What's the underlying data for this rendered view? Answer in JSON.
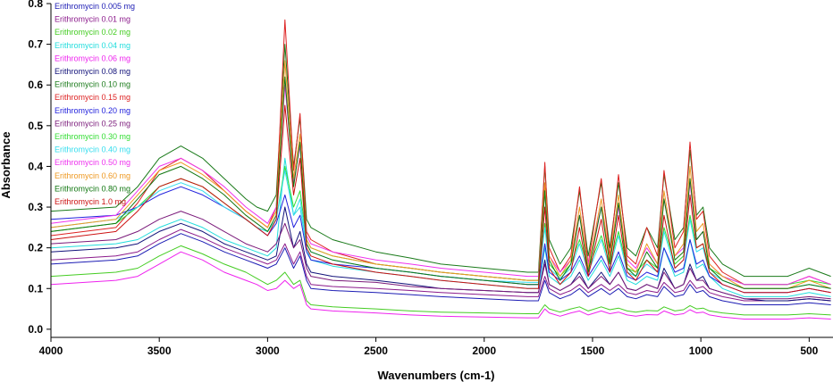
{
  "chart_data": {
    "type": "line",
    "title": "",
    "xlabel": "Wavenumbers (cm-1)",
    "ylabel": "Absorbance",
    "xlim": [
      4000,
      390
    ],
    "ylim": [
      -0.02,
      0.8
    ],
    "x_reversed": true,
    "grid": false,
    "legend_position": "top-left",
    "x_ticks": [
      4000,
      3500,
      3000,
      2500,
      2000,
      1500,
      1000,
      500
    ],
    "x_tick_labels": [
      "4000",
      "3500",
      "3000",
      "2500",
      "2000",
      "1500",
      "1000",
      "500"
    ],
    "y_ticks": [
      0.0,
      0.1,
      0.2,
      0.3,
      0.4,
      0.5,
      0.6,
      0.7,
      0.8
    ],
    "y_tick_labels": [
      "0.0",
      "0.1",
      "0.2",
      "0.3",
      "0.4",
      "0.5",
      "0.6",
      "0.7",
      "0.8"
    ],
    "x": [
      4000,
      3700,
      3600,
      3500,
      3400,
      3300,
      3200,
      3100,
      3050,
      3000,
      2960,
      2920,
      2880,
      2850,
      2820,
      2800,
      2700,
      2500,
      2340,
      2200,
      2000,
      1800,
      1750,
      1720,
      1700,
      1650,
      1600,
      1560,
      1520,
      1460,
      1420,
      1380,
      1340,
      1300,
      1250,
      1200,
      1170,
      1120,
      1080,
      1050,
      1020,
      990,
      960,
      900,
      800,
      700,
      600,
      500,
      400
    ],
    "series": [
      {
        "name": "Erithromycin 0.005 mg",
        "color": "#1c1cb4",
        "values": [
          0.16,
          0.17,
          0.18,
          0.21,
          0.235,
          0.215,
          0.19,
          0.17,
          0.16,
          0.15,
          0.16,
          0.2,
          0.15,
          0.18,
          0.12,
          0.1,
          0.095,
          0.09,
          0.085,
          0.08,
          0.075,
          0.07,
          0.07,
          0.12,
          0.09,
          0.075,
          0.085,
          0.1,
          0.08,
          0.1,
          0.085,
          0.1,
          0.08,
          0.075,
          0.085,
          0.08,
          0.105,
          0.08,
          0.085,
          0.11,
          0.09,
          0.095,
          0.08,
          0.07,
          0.06,
          0.06,
          0.06,
          0.065,
          0.06
        ]
      },
      {
        "name": "Erithromycin 0.01 mg",
        "color": "#8b1a8b",
        "values": [
          0.17,
          0.18,
          0.19,
          0.22,
          0.245,
          0.225,
          0.2,
          0.18,
          0.17,
          0.16,
          0.17,
          0.21,
          0.16,
          0.19,
          0.13,
          0.11,
          0.105,
          0.1,
          0.095,
          0.09,
          0.085,
          0.08,
          0.08,
          0.13,
          0.1,
          0.085,
          0.095,
          0.11,
          0.09,
          0.11,
          0.095,
          0.11,
          0.09,
          0.085,
          0.095,
          0.09,
          0.115,
          0.09,
          0.095,
          0.12,
          0.1,
          0.105,
          0.09,
          0.08,
          0.07,
          0.07,
          0.07,
          0.075,
          0.07
        ]
      },
      {
        "name": "Erithromycin 0.02 mg",
        "color": "#44cc22",
        "values": [
          0.13,
          0.14,
          0.15,
          0.18,
          0.205,
          0.185,
          0.16,
          0.14,
          0.125,
          0.11,
          0.12,
          0.14,
          0.11,
          0.12,
          0.07,
          0.06,
          0.055,
          0.05,
          0.045,
          0.042,
          0.04,
          0.038,
          0.038,
          0.06,
          0.05,
          0.042,
          0.05,
          0.055,
          0.045,
          0.055,
          0.048,
          0.052,
          0.045,
          0.042,
          0.046,
          0.045,
          0.055,
          0.045,
          0.048,
          0.058,
          0.05,
          0.052,
          0.045,
          0.04,
          0.035,
          0.035,
          0.035,
          0.038,
          0.035
        ]
      },
      {
        "name": "Erithromycin 0.04 mg",
        "color": "#22dddd",
        "values": [
          0.2,
          0.21,
          0.22,
          0.25,
          0.27,
          0.25,
          0.22,
          0.2,
          0.19,
          0.18,
          0.2,
          0.42,
          0.28,
          0.3,
          0.2,
          0.17,
          0.155,
          0.14,
          0.13,
          0.12,
          0.11,
          0.1,
          0.1,
          0.2,
          0.13,
          0.11,
          0.13,
          0.17,
          0.12,
          0.17,
          0.13,
          0.18,
          0.12,
          0.11,
          0.13,
          0.12,
          0.2,
          0.13,
          0.14,
          0.22,
          0.15,
          0.16,
          0.13,
          0.1,
          0.08,
          0.08,
          0.08,
          0.09,
          0.08
        ]
      },
      {
        "name": "Erithromycin 0.06 mg",
        "color": "#ee22ee",
        "values": [
          0.11,
          0.12,
          0.13,
          0.16,
          0.19,
          0.17,
          0.14,
          0.12,
          0.11,
          0.095,
          0.1,
          0.12,
          0.1,
          0.11,
          0.06,
          0.05,
          0.045,
          0.04,
          0.035,
          0.032,
          0.03,
          0.028,
          0.028,
          0.05,
          0.04,
          0.032,
          0.04,
          0.045,
          0.035,
          0.045,
          0.038,
          0.042,
          0.035,
          0.032,
          0.036,
          0.035,
          0.045,
          0.035,
          0.038,
          0.048,
          0.04,
          0.042,
          0.035,
          0.03,
          0.025,
          0.025,
          0.025,
          0.028,
          0.025
        ]
      },
      {
        "name": "Erithromycin 0.08 mg",
        "color": "#12127a",
        "values": [
          0.19,
          0.2,
          0.21,
          0.24,
          0.26,
          0.24,
          0.21,
          0.19,
          0.18,
          0.17,
          0.18,
          0.3,
          0.2,
          0.24,
          0.16,
          0.14,
          0.13,
          0.12,
          0.11,
          0.1,
          0.095,
          0.09,
          0.09,
          0.17,
          0.11,
          0.095,
          0.11,
          0.14,
          0.1,
          0.14,
          0.11,
          0.14,
          0.1,
          0.095,
          0.11,
          0.1,
          0.15,
          0.1,
          0.11,
          0.16,
          0.12,
          0.13,
          0.1,
          0.09,
          0.075,
          0.07,
          0.07,
          0.075,
          0.07
        ]
      },
      {
        "name": "Erithromycin 0.10 mg",
        "color": "#1a7a1a",
        "values": [
          0.29,
          0.3,
          0.35,
          0.42,
          0.45,
          0.42,
          0.37,
          0.32,
          0.3,
          0.29,
          0.33,
          0.7,
          0.4,
          0.52,
          0.27,
          0.25,
          0.22,
          0.19,
          0.175,
          0.16,
          0.15,
          0.14,
          0.14,
          0.4,
          0.22,
          0.16,
          0.2,
          0.34,
          0.18,
          0.36,
          0.2,
          0.36,
          0.2,
          0.18,
          0.25,
          0.2,
          0.38,
          0.22,
          0.25,
          0.44,
          0.28,
          0.3,
          0.2,
          0.16,
          0.13,
          0.13,
          0.13,
          0.15,
          0.13
        ]
      },
      {
        "name": "Erithromycin 0.15 mg",
        "color": "#dd2222",
        "values": [
          0.23,
          0.25,
          0.31,
          0.39,
          0.42,
          0.39,
          0.34,
          0.29,
          0.27,
          0.25,
          0.3,
          0.76,
          0.39,
          0.53,
          0.24,
          0.22,
          0.19,
          0.16,
          0.15,
          0.14,
          0.13,
          0.12,
          0.12,
          0.41,
          0.2,
          0.14,
          0.18,
          0.35,
          0.16,
          0.37,
          0.18,
          0.38,
          0.18,
          0.16,
          0.25,
          0.18,
          0.39,
          0.2,
          0.24,
          0.46,
          0.27,
          0.29,
          0.18,
          0.14,
          0.11,
          0.11,
          0.11,
          0.13,
          0.11
        ]
      },
      {
        "name": "Erithromycin 0.20 mg",
        "color": "#2222dd",
        "values": [
          0.27,
          0.28,
          0.3,
          0.33,
          0.35,
          0.33,
          0.3,
          0.27,
          0.25,
          0.23,
          0.26,
          0.33,
          0.25,
          0.28,
          0.19,
          0.17,
          0.16,
          0.15,
          0.14,
          0.13,
          0.12,
          0.11,
          0.11,
          0.21,
          0.14,
          0.12,
          0.14,
          0.18,
          0.13,
          0.18,
          0.14,
          0.19,
          0.13,
          0.12,
          0.14,
          0.13,
          0.2,
          0.14,
          0.15,
          0.22,
          0.16,
          0.17,
          0.13,
          0.11,
          0.09,
          0.09,
          0.09,
          0.1,
          0.09
        ]
      },
      {
        "name": "Erithromycin 0.25 mg",
        "color": "#7a1a7a",
        "values": [
          0.21,
          0.22,
          0.24,
          0.27,
          0.29,
          0.27,
          0.24,
          0.21,
          0.2,
          0.19,
          0.21,
          0.26,
          0.2,
          0.22,
          0.15,
          0.13,
          0.12,
          0.115,
          0.105,
          0.1,
          0.095,
          0.09,
          0.09,
          0.16,
          0.11,
          0.095,
          0.11,
          0.13,
          0.1,
          0.13,
          0.11,
          0.14,
          0.1,
          0.095,
          0.11,
          0.1,
          0.14,
          0.1,
          0.11,
          0.15,
          0.12,
          0.12,
          0.1,
          0.09,
          0.075,
          0.075,
          0.075,
          0.08,
          0.075
        ]
      },
      {
        "name": "Erithromycin 0.30 mg",
        "color": "#33dd33",
        "values": [
          0.24,
          0.26,
          0.3,
          0.35,
          0.37,
          0.35,
          0.31,
          0.27,
          0.25,
          0.24,
          0.27,
          0.4,
          0.3,
          0.34,
          0.22,
          0.2,
          0.18,
          0.16,
          0.15,
          0.14,
          0.13,
          0.12,
          0.12,
          0.26,
          0.16,
          0.13,
          0.16,
          0.22,
          0.15,
          0.23,
          0.16,
          0.24,
          0.15,
          0.14,
          0.17,
          0.15,
          0.25,
          0.16,
          0.18,
          0.28,
          0.2,
          0.21,
          0.15,
          0.13,
          0.11,
          0.11,
          0.11,
          0.12,
          0.11
        ]
      },
      {
        "name": "Erithromycin 0.40 mg",
        "color": "#33ddee",
        "values": [
          0.25,
          0.27,
          0.3,
          0.34,
          0.36,
          0.34,
          0.3,
          0.27,
          0.25,
          0.24,
          0.27,
          0.39,
          0.28,
          0.32,
          0.21,
          0.19,
          0.17,
          0.15,
          0.14,
          0.13,
          0.12,
          0.115,
          0.115,
          0.25,
          0.15,
          0.125,
          0.15,
          0.21,
          0.14,
          0.22,
          0.15,
          0.23,
          0.14,
          0.13,
          0.16,
          0.14,
          0.24,
          0.15,
          0.17,
          0.27,
          0.19,
          0.2,
          0.14,
          0.12,
          0.1,
          0.1,
          0.1,
          0.11,
          0.1
        ]
      },
      {
        "name": "Erithromycin 0.50 mg",
        "color": "#ee33ee",
        "values": [
          0.26,
          0.28,
          0.34,
          0.4,
          0.42,
          0.39,
          0.35,
          0.3,
          0.28,
          0.26,
          0.3,
          0.6,
          0.36,
          0.45,
          0.23,
          0.21,
          0.19,
          0.17,
          0.16,
          0.15,
          0.14,
          0.13,
          0.13,
          0.34,
          0.18,
          0.14,
          0.17,
          0.28,
          0.16,
          0.3,
          0.17,
          0.3,
          0.17,
          0.15,
          0.2,
          0.16,
          0.32,
          0.18,
          0.2,
          0.36,
          0.22,
          0.24,
          0.16,
          0.13,
          0.11,
          0.11,
          0.11,
          0.13,
          0.11
        ]
      },
      {
        "name": "Erithromycin 0.60 mg",
        "color": "#ee9922",
        "values": [
          0.25,
          0.27,
          0.33,
          0.39,
          0.41,
          0.38,
          0.34,
          0.29,
          0.27,
          0.25,
          0.29,
          0.66,
          0.37,
          0.48,
          0.22,
          0.2,
          0.18,
          0.16,
          0.15,
          0.14,
          0.13,
          0.12,
          0.12,
          0.36,
          0.18,
          0.13,
          0.17,
          0.3,
          0.15,
          0.32,
          0.17,
          0.33,
          0.16,
          0.14,
          0.21,
          0.16,
          0.34,
          0.18,
          0.21,
          0.4,
          0.24,
          0.26,
          0.16,
          0.13,
          0.1,
          0.1,
          0.1,
          0.12,
          0.1
        ]
      },
      {
        "name": "Erithromycin 0.80 mg",
        "color": "#117711",
        "values": [
          0.24,
          0.26,
          0.32,
          0.38,
          0.4,
          0.37,
          0.33,
          0.28,
          0.26,
          0.24,
          0.28,
          0.62,
          0.35,
          0.46,
          0.21,
          0.19,
          0.17,
          0.15,
          0.14,
          0.13,
          0.12,
          0.11,
          0.11,
          0.34,
          0.17,
          0.12,
          0.16,
          0.28,
          0.14,
          0.3,
          0.16,
          0.31,
          0.15,
          0.13,
          0.19,
          0.15,
          0.32,
          0.17,
          0.19,
          0.37,
          0.22,
          0.24,
          0.15,
          0.12,
          0.1,
          0.1,
          0.1,
          0.11,
          0.1
        ]
      },
      {
        "name": "Erithromycin 1.0 mg",
        "color": "#cc1111",
        "values": [
          0.22,
          0.24,
          0.29,
          0.35,
          0.37,
          0.35,
          0.31,
          0.27,
          0.25,
          0.23,
          0.27,
          0.55,
          0.33,
          0.42,
          0.2,
          0.18,
          0.16,
          0.14,
          0.13,
          0.12,
          0.11,
          0.1,
          0.1,
          0.3,
          0.15,
          0.11,
          0.14,
          0.25,
          0.13,
          0.27,
          0.14,
          0.28,
          0.14,
          0.12,
          0.17,
          0.14,
          0.28,
          0.15,
          0.17,
          0.33,
          0.2,
          0.21,
          0.14,
          0.11,
          0.09,
          0.09,
          0.09,
          0.1,
          0.09
        ]
      }
    ]
  }
}
